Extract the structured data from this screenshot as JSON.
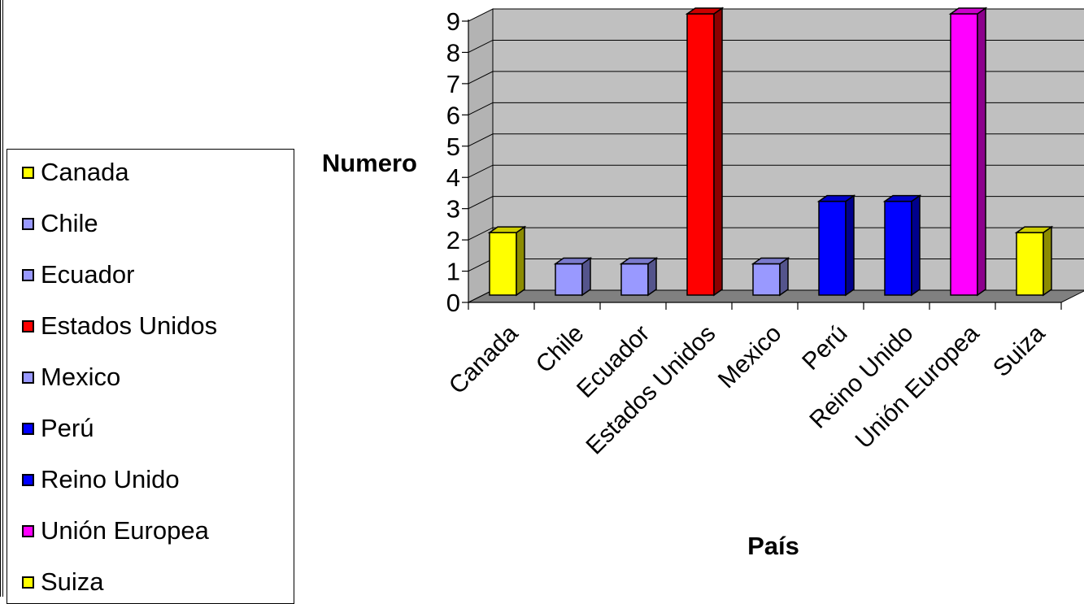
{
  "chart_data": {
    "type": "bar",
    "title": "",
    "xlabel": "País",
    "ylabel": "Numero",
    "categories": [
      "Canada",
      "Chile",
      "Ecuador",
      "Estados Unidos",
      "Mexico",
      "Perú",
      "Reino Unido",
      "Unión Europea",
      "Suiza"
    ],
    "values": [
      2,
      1,
      1,
      9,
      1,
      3,
      3,
      9,
      2
    ],
    "colors": [
      "#ffff00",
      "#9999ff",
      "#9999ff",
      "#ff0000",
      "#9999ff",
      "#0000ff",
      "#0000ff",
      "#ff00ff",
      "#ffff00"
    ],
    "ylim": [
      0,
      9
    ],
    "yticks": [
      "0",
      "1",
      "2",
      "3",
      "4",
      "5",
      "6",
      "7",
      "8",
      "9"
    ],
    "grid": true,
    "style": "3d",
    "legend": {
      "position": "left",
      "entries": [
        {
          "label": "Canada",
          "color": "#ffff00"
        },
        {
          "label": "Chile",
          "color": "#9999ff"
        },
        {
          "label": "Ecuador",
          "color": "#9999ff"
        },
        {
          "label": "Estados Unidos",
          "color": "#ff0000"
        },
        {
          "label": "Mexico",
          "color": "#9999ff"
        },
        {
          "label": "Perú",
          "color": "#0000ff"
        },
        {
          "label": "Reino Unido",
          "color": "#0000ff"
        },
        {
          "label": "Unión Europea",
          "color": "#ff00ff"
        },
        {
          "label": "Suiza",
          "color": "#ffff00"
        }
      ]
    }
  }
}
